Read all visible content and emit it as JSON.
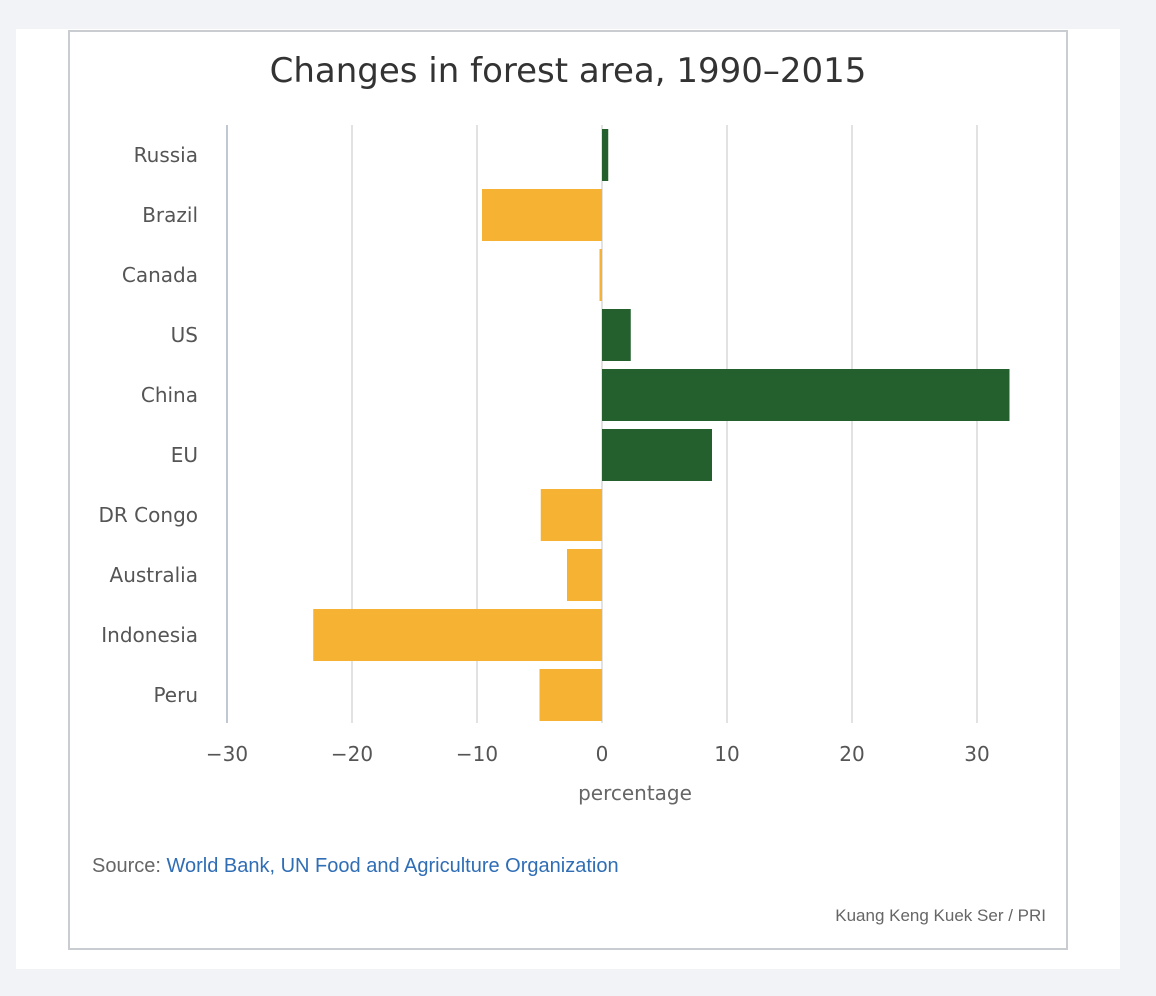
{
  "chart_data": {
    "type": "bar",
    "orientation": "horizontal",
    "title": "Changes in forest area, 1990–2015",
    "xlabel": "percentage",
    "ylabel": "",
    "xlim": [
      -30,
      34
    ],
    "xticks": [
      -30,
      -20,
      -10,
      0,
      10,
      20,
      30
    ],
    "xtick_labels": [
      "−30",
      "−20",
      "−10",
      "0",
      "10",
      "20",
      "30"
    ],
    "categories": [
      "Russia",
      "Brazil",
      "Canada",
      "US",
      "China",
      "EU",
      "DR Congo",
      "Australia",
      "Indonesia",
      "Peru"
    ],
    "values": [
      0.5,
      -9.6,
      -0.2,
      2.3,
      32.6,
      8.8,
      -4.9,
      -2.8,
      -23.1,
      -5.0
    ],
    "grid": "vertical",
    "legend": "none",
    "colors": {
      "positive": "#24602d",
      "negative": "#f6b233"
    }
  },
  "footer": {
    "source_prefix": "Source: ",
    "source_link": "World Bank, UN Food and Agriculture Organization",
    "credit": "Kuang Keng Kuek Ser / PRI"
  }
}
